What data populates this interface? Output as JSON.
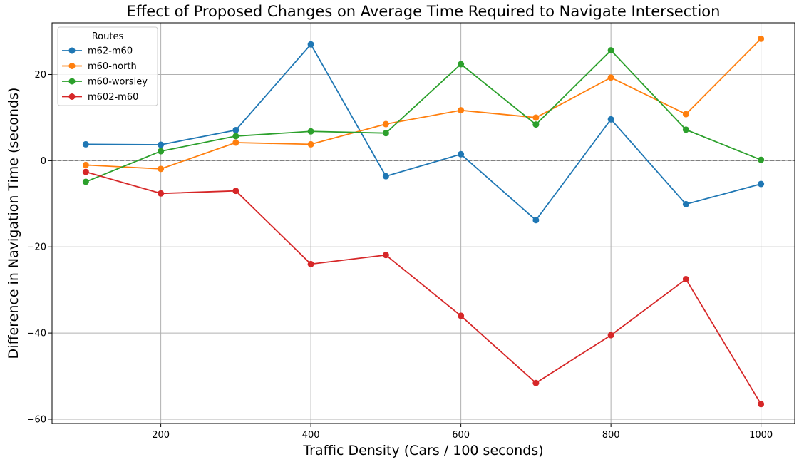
{
  "chart_data": {
    "type": "line",
    "title": "Effect of Proposed Changes on Average Time Required to Navigate Intersection",
    "xlabel": "Traffic Density (Cars / 100 seconds)",
    "ylabel": "Difference in Navigation Time (seconds)",
    "x": [
      100,
      200,
      300,
      400,
      500,
      600,
      700,
      800,
      900,
      1000
    ],
    "xlim": [
      55,
      1045
    ],
    "ylim": [
      -61,
      32
    ],
    "xticks": [
      200,
      400,
      600,
      800,
      1000
    ],
    "yticks": [
      -60,
      -40,
      -20,
      0,
      20
    ],
    "grid": true,
    "zero_line": true,
    "legend": {
      "title": "Routes",
      "placement": "top-left"
    },
    "series": [
      {
        "name": "m62-m60",
        "color": "#1f77b4",
        "values": [
          3.8,
          3.7,
          7.1,
          27.0,
          -3.6,
          1.5,
          -13.8,
          9.6,
          -10.1,
          -5.4
        ]
      },
      {
        "name": "m60-north",
        "color": "#ff7f0e",
        "values": [
          -1.0,
          -1.9,
          4.2,
          3.8,
          8.5,
          11.7,
          10.0,
          19.3,
          10.8,
          28.3
        ]
      },
      {
        "name": "m60-worsley",
        "color": "#2ca02c",
        "values": [
          -4.9,
          2.2,
          5.7,
          6.8,
          6.4,
          22.4,
          8.4,
          25.6,
          7.2,
          0.2
        ]
      },
      {
        "name": "m602-m60",
        "color": "#d62728",
        "values": [
          -2.6,
          -7.6,
          -7.0,
          -24.0,
          -21.9,
          -36.0,
          -51.6,
          -40.5,
          -27.5,
          -56.5
        ]
      }
    ]
  }
}
